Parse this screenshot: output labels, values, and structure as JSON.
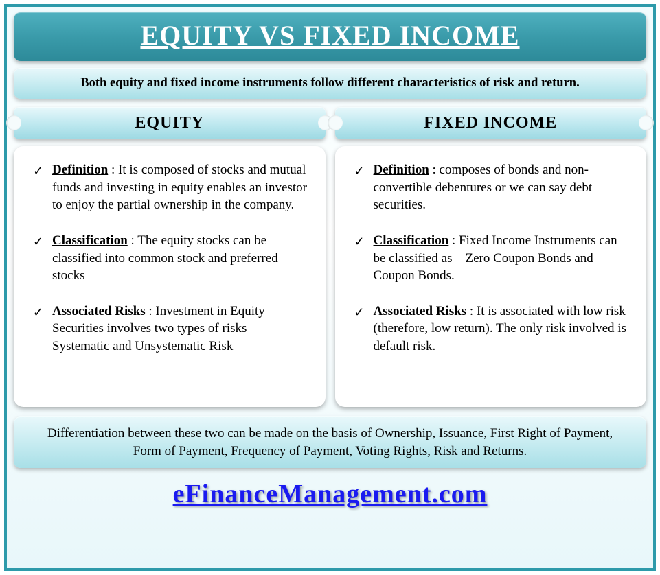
{
  "title": "EQUITY VS FIXED INCOME",
  "intro": "Both equity and fixed income instruments follow different characteristics of risk and return.",
  "columns": [
    {
      "heading": "EQUITY",
      "items": [
        {
          "label": "Definition",
          "text": " : It is composed of stocks and mutual funds and investing in equity enables an investor to enjoy the partial ownership in the company."
        },
        {
          "label": "Classification",
          "text": " : The equity stocks can be classified into common stock and preferred stocks"
        },
        {
          "label": "Associated Risks",
          "text": " : Investment in Equity Securities involves two types of risks – Systematic and Unsystematic Risk"
        }
      ]
    },
    {
      "heading": "FIXED INCOME",
      "items": [
        {
          "label": "Definition",
          "text": " : composes of bonds and non-convertible debentures or we can say debt securities."
        },
        {
          "label": "Classification",
          "text": " : Fixed Income Instruments can be classified as – Zero Coupon Bonds and Coupon Bonds."
        },
        {
          "label": "Associated Risks",
          "text": " : It is associated with low risk (therefore, low return). The only risk involved is default risk."
        }
      ]
    }
  ],
  "footer": "Differentiation between these two can be made on the basis of Ownership, Issuance, First Right of Payment, Form of Payment, Frequency of Payment, Voting Rights, Risk and Returns.",
  "brand": "eFinanceManagement.com",
  "style": {
    "outer_border_color": "#2d9aaa",
    "title_bg_gradient": [
      "#4fb0bf",
      "#3a9baa",
      "#2d8a99"
    ],
    "title_text_color": "#ffffff",
    "panel_bg_gradient": [
      "#e8f8fb",
      "#c8ecf1",
      "#a8dfe7"
    ],
    "card_bg": "#ffffff",
    "brand_color": "#1a1af0",
    "title_fontsize": 40,
    "intro_fontsize": 18.5,
    "col_heading_fontsize": 24,
    "body_fontsize": 19,
    "brand_fontsize": 38,
    "checkmark_glyph": "✓"
  }
}
